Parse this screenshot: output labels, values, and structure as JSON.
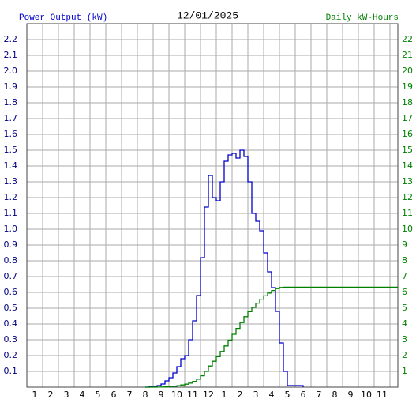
{
  "chart_data": {
    "type": "step",
    "title": "12/01/2025",
    "y_label": "Power Output (kW)",
    "y2_label": "Daily kW-Hours",
    "xlim": [
      0.5,
      24
    ],
    "xticks": [
      1,
      2,
      3,
      4,
      5,
      6,
      7,
      8,
      9,
      10,
      11,
      12,
      {
        "value": 13,
        "label": "1"
      },
      {
        "value": 14,
        "label": "2"
      },
      {
        "value": 15,
        "label": "3"
      },
      {
        "value": 16,
        "label": "4"
      },
      {
        "value": 17,
        "label": "5"
      },
      {
        "value": 18,
        "label": "6"
      },
      {
        "value": 19,
        "label": "7"
      },
      {
        "value": 20,
        "label": "8"
      },
      {
        "value": 21,
        "label": "9"
      },
      {
        "value": 22,
        "label": "10"
      },
      {
        "value": 23,
        "label": "11"
      }
    ],
    "ylim": [
      0,
      2.3
    ],
    "yticks": [
      0.1,
      0.2,
      0.3,
      0.4,
      0.5,
      0.6,
      0.7,
      0.8,
      0.9,
      {
        "value": 1,
        "label": "1.0"
      },
      1.1,
      1.2,
      1.3,
      1.4,
      1.5,
      1.6,
      1.7,
      1.8,
      1.9,
      {
        "value": 2,
        "label": "2.0"
      },
      2.1,
      2.2
    ],
    "y2lim": [
      0,
      23
    ],
    "y2ticks": [
      1,
      2,
      3,
      4,
      5,
      6,
      7,
      8,
      9,
      10,
      11,
      12,
      13,
      14,
      15,
      16,
      17,
      18,
      19,
      20,
      21,
      22
    ],
    "grid": true,
    "series": [
      {
        "color": "#0000cc",
        "x": [
          8,
          8.25,
          8.5,
          8.75,
          9,
          9.25,
          9.5,
          9.75,
          10,
          10.25,
          10.5,
          10.75,
          11,
          11.25,
          11.5,
          11.75,
          12,
          12.25,
          12.5,
          12.75,
          13,
          13.25,
          13.5,
          13.75,
          14,
          14.25,
          14.5,
          14.75,
          15,
          15.25,
          15.5,
          15.75,
          16,
          16.25,
          16.5,
          16.75,
          17,
          17.25,
          17.5,
          17.75,
          18
        ],
        "values": [
          0,
          0.005,
          0.005,
          0.01,
          0.02,
          0.04,
          0.06,
          0.09,
          0.13,
          0.18,
          0.2,
          0.3,
          0.42,
          0.58,
          0.82,
          1.14,
          1.34,
          1.2,
          1.18,
          1.3,
          1.43,
          1.47,
          1.48,
          1.45,
          1.5,
          1.46,
          1.3,
          1.1,
          1.05,
          0.99,
          0.85,
          0.73,
          0.63,
          0.48,
          0.28,
          0.1,
          0.01,
          0.01,
          0.01,
          0.01,
          0
        ]
      },
      {
        "color": "#008000",
        "axis": "y2",
        "x": [
          8,
          8.25,
          8.5,
          8.75,
          9,
          9.25,
          9.5,
          9.75,
          10,
          10.25,
          10.5,
          10.75,
          11,
          11.25,
          11.5,
          11.75,
          12,
          12.25,
          12.5,
          12.75,
          13,
          13.25,
          13.5,
          13.75,
          14,
          14.25,
          14.5,
          14.75,
          15,
          15.25,
          15.5,
          15.75,
          16,
          16.25,
          16.5,
          16.75,
          24
        ],
        "values": [
          0,
          0.001,
          0.0025,
          0.005,
          0.01,
          0.02,
          0.035,
          0.06,
          0.09,
          0.14,
          0.19,
          0.26,
          0.37,
          0.51,
          0.72,
          1.0,
          1.34,
          1.64,
          1.93,
          2.26,
          2.61,
          2.98,
          3.35,
          3.72,
          4.09,
          4.46,
          4.78,
          5.06,
          5.32,
          5.57,
          5.78,
          5.96,
          6.12,
          6.24,
          6.31,
          6.33,
          6.33
        ]
      }
    ]
  }
}
